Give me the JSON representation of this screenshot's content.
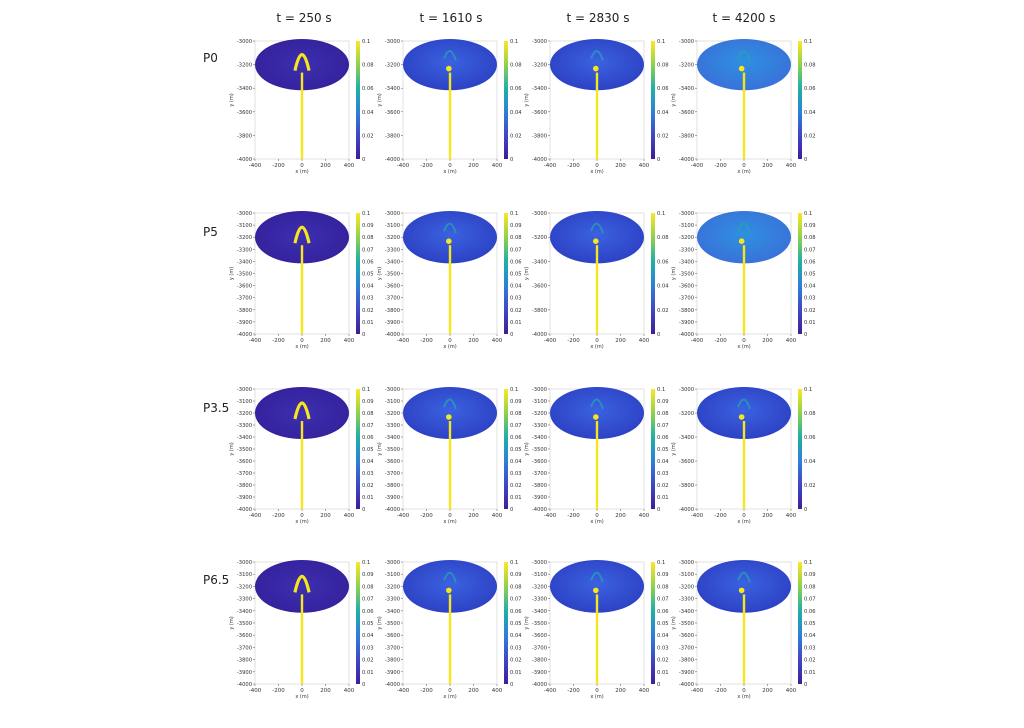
{
  "colors": {
    "background": "#ffffff",
    "plume": "#f5e61e",
    "colormap_low": "#3b1f99",
    "colormap_mid": "#21a68a",
    "colormap_high": "#fde725"
  },
  "column_titles": [
    "t = 250 s",
    "t = 1610 s",
    "t = 2830 s",
    "t = 4200 s"
  ],
  "row_labels": [
    "P0",
    "P5",
    "P3.5",
    "P6.5"
  ],
  "chart_data": {
    "type": "heatmap",
    "description_units": {
      "x": "x (m)",
      "y": "y (m)"
    },
    "xlabel": "x (m)",
    "ylabel": "y (m)",
    "xticks": [
      -400,
      -200,
      0,
      200,
      400
    ],
    "xlim": [
      -400,
      400
    ],
    "ylim": [
      -4000,
      -3000
    ],
    "colorbar_range": [
      0,
      0.1
    ],
    "rows": [
      {
        "label": "P0",
        "panels": [
          {
            "time": "t = 250 s",
            "yticks": [
              -3000,
              -3200,
              -3400,
              -3600,
              -3800,
              -4000
            ],
            "cbar_ticks": [
              "0.1",
              "0.08",
              "0.06",
              "0.04",
              "0.02",
              "0"
            ]
          },
          {
            "time": "t = 1610 s",
            "yticks": [
              -3000,
              -3200,
              -3400,
              -3600,
              -3800,
              -4000
            ],
            "cbar_ticks": [
              "0.1",
              "0.08",
              "0.06",
              "0.04",
              "0.02",
              "0"
            ]
          },
          {
            "time": "t = 2830 s",
            "yticks": [
              -3000,
              -3200,
              -3400,
              -3600,
              -3800,
              -4000
            ],
            "cbar_ticks": [
              "0.1",
              "0.08",
              "0.06",
              "0.04",
              "0.02",
              "0"
            ]
          },
          {
            "time": "t = 4200 s",
            "yticks": [
              -3000,
              -3200,
              -3400,
              -3600,
              -3800,
              -4000
            ],
            "cbar_ticks": [
              "0.1",
              "0.08",
              "0.06",
              "0.04",
              "0.02",
              "0"
            ]
          }
        ]
      },
      {
        "label": "P5",
        "panels": [
          {
            "time": "t = 250 s",
            "yticks": [
              -3000,
              -3100,
              -3200,
              -3300,
              -3400,
              -3500,
              -3600,
              -3700,
              -3800,
              -3900,
              -4000
            ],
            "cbar_ticks": [
              "0.1",
              "0.09",
              "0.08",
              "0.07",
              "0.06",
              "0.05",
              "0.04",
              "0.03",
              "0.02",
              "0.01",
              "0"
            ]
          },
          {
            "time": "t = 1610 s",
            "yticks": [
              -3000,
              -3100,
              -3200,
              -3300,
              -3400,
              -3500,
              -3600,
              -3700,
              -3800,
              -3900,
              -4000
            ],
            "cbar_ticks": [
              "0.1",
              "0.09",
              "0.08",
              "0.07",
              "0.06",
              "0.05",
              "0.04",
              "0.03",
              "0.02",
              "0.01",
              "0"
            ]
          },
          {
            "time": "t = 2830 s",
            "yticks": [
              -3000,
              -3200,
              -3400,
              -3600,
              -3800,
              -4000
            ],
            "cbar_ticks": [
              "0.1",
              "0.08",
              "0.06",
              "0.04",
              "0.02",
              "0"
            ]
          },
          {
            "time": "t = 4200 s",
            "yticks": [
              -3000,
              -3100,
              -3200,
              -3300,
              -3400,
              -3500,
              -3600,
              -3700,
              -3800,
              -3900,
              -4000
            ],
            "cbar_ticks": [
              "0.1",
              "0.09",
              "0.08",
              "0.07",
              "0.06",
              "0.05",
              "0.04",
              "0.03",
              "0.02",
              "0.01",
              "0"
            ]
          }
        ]
      },
      {
        "label": "P3.5",
        "panels": [
          {
            "time": "t = 250 s",
            "yticks": [
              -3000,
              -3100,
              -3200,
              -3300,
              -3400,
              -3500,
              -3600,
              -3700,
              -3800,
              -3900,
              -4000
            ],
            "cbar_ticks": [
              "0.1",
              "0.09",
              "0.08",
              "0.07",
              "0.06",
              "0.05",
              "0.04",
              "0.03",
              "0.02",
              "0.01",
              "0"
            ]
          },
          {
            "time": "t = 1610 s",
            "yticks": [
              -3000,
              -3100,
              -3200,
              -3300,
              -3400,
              -3500,
              -3600,
              -3700,
              -3800,
              -3900,
              -4000
            ],
            "cbar_ticks": [
              "0.1",
              "0.09",
              "0.08",
              "0.07",
              "0.06",
              "0.05",
              "0.04",
              "0.03",
              "0.02",
              "0.01",
              "0"
            ]
          },
          {
            "time": "t = 2830 s",
            "yticks": [
              -3000,
              -3100,
              -3200,
              -3300,
              -3400,
              -3500,
              -3600,
              -3700,
              -3800,
              -3900,
              -4000
            ],
            "cbar_ticks": [
              "0.1",
              "0.09",
              "0.08",
              "0.07",
              "0.06",
              "0.05",
              "0.04",
              "0.03",
              "0.02",
              "0.01",
              "0"
            ]
          },
          {
            "time": "t = 4200 s",
            "yticks": [
              -3000,
              -3200,
              -3400,
              -3600,
              -3800,
              -4000
            ],
            "cbar_ticks": [
              "0.1",
              "0.08",
              "0.06",
              "0.04",
              "0.02",
              "0"
            ]
          }
        ]
      },
      {
        "label": "P6.5",
        "panels": [
          {
            "time": "t = 250 s",
            "yticks": [
              -3000,
              -3100,
              -3200,
              -3300,
              -3400,
              -3500,
              -3600,
              -3700,
              -3800,
              -3900,
              -4000
            ],
            "cbar_ticks": [
              "0.1",
              "0.09",
              "0.08",
              "0.07",
              "0.06",
              "0.05",
              "0.04",
              "0.03",
              "0.02",
              "0.01",
              "0"
            ]
          },
          {
            "time": "t = 1610 s",
            "yticks": [
              -3000,
              -3100,
              -3200,
              -3300,
              -3400,
              -3500,
              -3600,
              -3700,
              -3800,
              -3900,
              -4000
            ],
            "cbar_ticks": [
              "0.1",
              "0.09",
              "0.08",
              "0.07",
              "0.06",
              "0.05",
              "0.04",
              "0.03",
              "0.02",
              "0.01",
              "0"
            ]
          },
          {
            "time": "t = 2830 s",
            "yticks": [
              -3000,
              -3100,
              -3200,
              -3300,
              -3400,
              -3500,
              -3600,
              -3700,
              -3800,
              -3900,
              -4000
            ],
            "cbar_ticks": [
              "0.1",
              "0.09",
              "0.08",
              "0.07",
              "0.06",
              "0.05",
              "0.04",
              "0.03",
              "0.02",
              "0.01",
              "0"
            ]
          },
          {
            "time": "t = 4200 s",
            "yticks": [
              -3000,
              -3100,
              -3200,
              -3300,
              -3400,
              -3500,
              -3600,
              -3700,
              -3800,
              -3900,
              -4000
            ],
            "cbar_ticks": [
              "0.1",
              "0.09",
              "0.08",
              "0.07",
              "0.06",
              "0.05",
              "0.04",
              "0.03",
              "0.02",
              "0.01",
              "0"
            ]
          }
        ]
      }
    ]
  }
}
